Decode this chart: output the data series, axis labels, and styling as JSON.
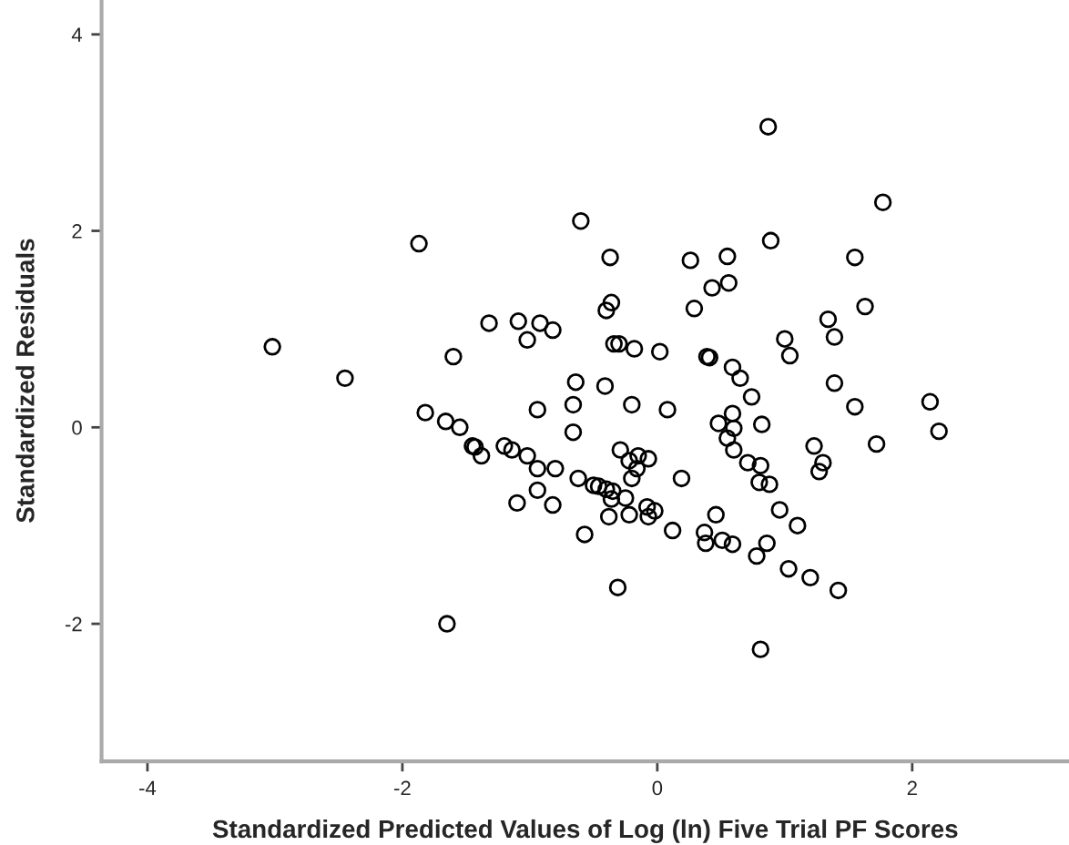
{
  "chart_data": {
    "type": "scatter",
    "xlabel": "Standardized Predicted Values of Log (ln) Five Trial PF Scores",
    "ylabel": "Standardized Residuals",
    "xlim": [
      -4.36,
      3.23
    ],
    "ylim": [
      -3.4,
      4.35
    ],
    "xticks": [
      -4,
      -2,
      0,
      2
    ],
    "yticks": [
      -2,
      0,
      2,
      4
    ],
    "grid": false,
    "marker": "circle",
    "series": [
      {
        "color": "#000000",
        "x": [
          -1.87,
          -3.02,
          -1.32,
          -1.09,
          -0.92,
          -1.02,
          -1.6,
          -2.45,
          -1.82,
          -1.66,
          -1.55,
          -1.45,
          -1.43,
          -1.38,
          -1.2,
          -1.14,
          -1.02,
          -0.94,
          -0.94,
          -1.1,
          -0.94,
          -1.65,
          0.87,
          1.77,
          -0.6,
          -0.37,
          0.26,
          0.55,
          0.89,
          1.55,
          0.43,
          0.56,
          -0.36,
          -0.4,
          0.29,
          1.34,
          1.63,
          1.39,
          1.0,
          1.04,
          -0.82,
          -0.34,
          -0.3,
          -0.18,
          0.02,
          0.39,
          0.41,
          0.59,
          0.65,
          0.74,
          1.39,
          1.55,
          2.14,
          2.21,
          1.72,
          1.23,
          1.3,
          1.27,
          -0.64,
          -0.41,
          -0.66,
          -0.2,
          0.08,
          -0.66,
          0.59,
          0.48,
          0.6,
          0.55,
          0.6,
          0.82,
          0.71,
          0.81,
          0.8,
          0.88,
          0.96,
          1.1,
          -0.8,
          -0.82,
          -0.62,
          -0.5,
          -0.46,
          -0.4,
          -0.35,
          -0.25,
          -0.36,
          -0.29,
          -0.22,
          -0.15,
          -0.07,
          -0.16,
          -0.2,
          0.19,
          -0.38,
          -0.22,
          -0.08,
          -0.02,
          -0.07,
          0.12,
          -0.57,
          0.46,
          0.37,
          0.38,
          0.51,
          0.59,
          0.86,
          0.78,
          1.03,
          1.2,
          1.42,
          -0.31,
          0.81
        ],
        "values": [
          1.87,
          0.82,
          1.06,
          1.08,
          1.06,
          0.89,
          0.72,
          0.5,
          0.15,
          0.06,
          0.0,
          -0.19,
          -0.2,
          -0.29,
          -0.19,
          -0.23,
          -0.29,
          -0.42,
          -0.64,
          -0.77,
          0.18,
          -2.0,
          3.06,
          2.29,
          2.1,
          1.73,
          1.7,
          1.74,
          1.9,
          1.73,
          1.42,
          1.47,
          1.27,
          1.19,
          1.21,
          1.1,
          1.23,
          0.92,
          0.9,
          0.73,
          0.99,
          0.85,
          0.85,
          0.8,
          0.77,
          0.72,
          0.71,
          0.61,
          0.5,
          0.31,
          0.45,
          0.21,
          0.26,
          -0.04,
          -0.17,
          -0.19,
          -0.36,
          -0.45,
          0.46,
          0.42,
          0.23,
          0.23,
          0.18,
          -0.05,
          0.14,
          0.04,
          -0.01,
          -0.11,
          -0.23,
          0.03,
          -0.36,
          -0.39,
          -0.56,
          -0.58,
          -0.84,
          -1.0,
          -0.42,
          -0.79,
          -0.52,
          -0.59,
          -0.6,
          -0.63,
          -0.65,
          -0.72,
          -0.73,
          -0.23,
          -0.34,
          -0.29,
          -0.32,
          -0.42,
          -0.52,
          -0.52,
          -0.91,
          -0.89,
          -0.81,
          -0.85,
          -0.91,
          -1.05,
          -1.09,
          -0.89,
          -1.07,
          -1.18,
          -1.15,
          -1.19,
          -1.18,
          -1.31,
          -1.44,
          -1.53,
          -1.66,
          -1.63,
          -2.26
        ]
      }
    ]
  }
}
